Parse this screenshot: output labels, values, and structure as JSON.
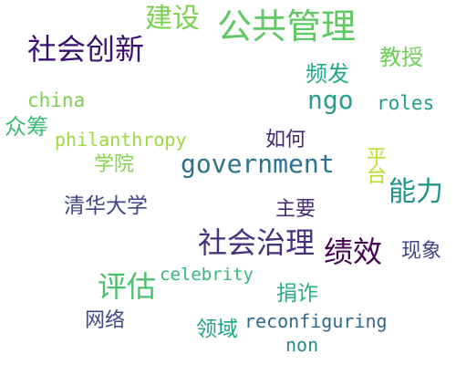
{
  "words": [
    {
      "text": "建设",
      "color": "#7ad151"
    },
    {
      "text": "公共管理",
      "color": "#5ec962"
    },
    {
      "text": "社会创新",
      "color": "#3b0f70"
    },
    {
      "text": "教授",
      "color": "#6ece58"
    },
    {
      "text": "频发",
      "color": "#22a884"
    },
    {
      "text": "china",
      "color": "#7ad151"
    },
    {
      "text": "ngo",
      "color": "#2a9d8f"
    },
    {
      "text": "roles",
      "color": "#1f9e89"
    },
    {
      "text": "众筹",
      "color": "#3cbb75"
    },
    {
      "text": "philanthropy",
      "color": "#9bd93c"
    },
    {
      "text": "如何",
      "color": "#482475"
    },
    {
      "text": "学院",
      "color": "#86d549"
    },
    {
      "text": "government",
      "color": "#2c728e"
    },
    {
      "text": "平台",
      "color": "#b5de2b"
    },
    {
      "text": "能力",
      "color": "#21918c"
    },
    {
      "text": "清华大学",
      "color": "#404688"
    },
    {
      "text": "主要",
      "color": "#472d7b"
    },
    {
      "text": "社会治理",
      "color": "#46327e"
    },
    {
      "text": "绩效",
      "color": "#440154"
    },
    {
      "text": "现象",
      "color": "#414487"
    },
    {
      "text": "评估",
      "color": "#4ac16d"
    },
    {
      "text": "celebrity",
      "color": "#35b779"
    },
    {
      "text": "捐诈",
      "color": "#29af7f"
    },
    {
      "text": "网络",
      "color": "#3e4989"
    },
    {
      "text": "领域",
      "color": "#20a486"
    },
    {
      "text": "reconfiguring",
      "color": "#31688e"
    },
    {
      "text": "non",
      "color": "#23898e"
    }
  ]
}
